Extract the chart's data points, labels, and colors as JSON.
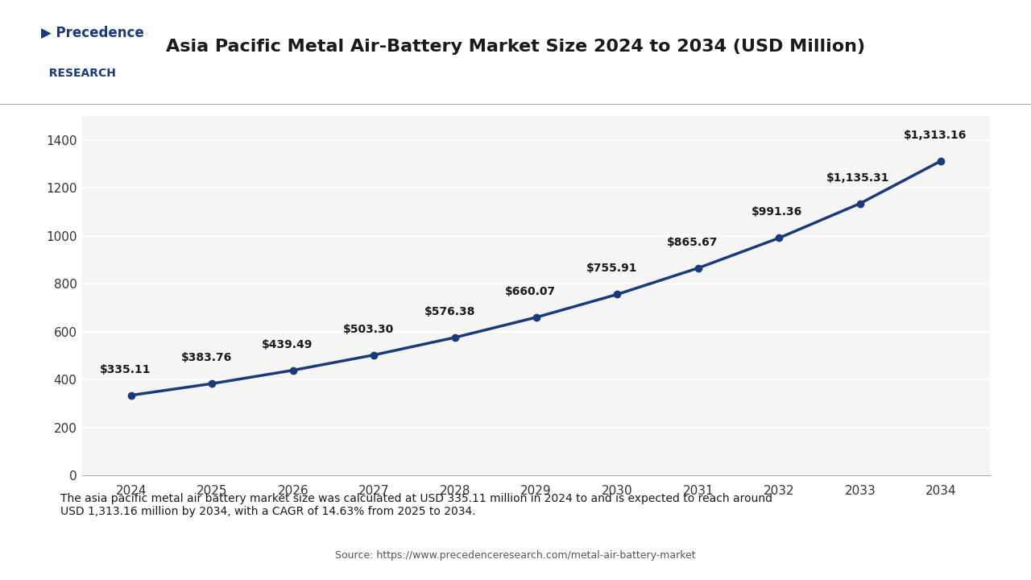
{
  "title": "Asia Pacific Metal Air-Battery Market Size 2024 to 2034 (USD Million)",
  "years": [
    2024,
    2025,
    2026,
    2027,
    2028,
    2029,
    2030,
    2031,
    2032,
    2033,
    2034
  ],
  "values": [
    335.11,
    383.76,
    439.49,
    503.3,
    576.38,
    660.07,
    755.91,
    865.67,
    991.36,
    1135.31,
    1313.16
  ],
  "labels": [
    "$335.11",
    "$383.76",
    "$439.49",
    "$503.30",
    "$576.38",
    "$660.07",
    "$755.91",
    "$865.67",
    "$991.36",
    "$1,135.31",
    "$1,313.16"
  ],
  "line_color": "#1a3a7c",
  "marker_color": "#1a3a7c",
  "bg_color": "#ffffff",
  "plot_bg_color": "#f5f5f5",
  "grid_color": "#ffffff",
  "ylim": [
    0,
    1500
  ],
  "yticks": [
    0,
    200,
    400,
    600,
    800,
    1000,
    1200,
    1400
  ],
  "title_fontsize": 16,
  "label_fontsize": 10,
  "tick_fontsize": 11,
  "footer_text": "The asia pacific metal air battery market size was calculated at USD 335.11 million in 2024 to and is expected to reach around\nUSD 1,313.16 million by 2034, with a CAGR of 14.63% from 2025 to 2034.",
  "source_text": "Source: https://www.precedenceresearch.com/metal-air-battery-market",
  "footer_bg": "#dde9f5",
  "logo_text_top": "Precedence",
  "logo_text_bottom": "RESEARCH"
}
